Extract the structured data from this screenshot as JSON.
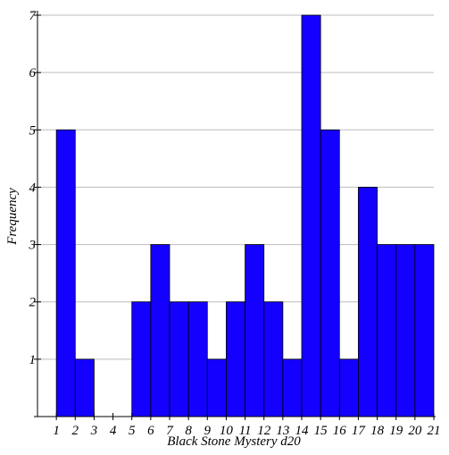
{
  "chart_data": {
    "type": "bar",
    "title": "",
    "xlabel": "Black Stone Mystery d20",
    "ylabel": "Frequency",
    "bins": [
      {
        "start": 1,
        "end": 2,
        "value": 5
      },
      {
        "start": 2,
        "end": 3,
        "value": 1
      },
      {
        "start": 3,
        "end": 4,
        "value": 0
      },
      {
        "start": 4,
        "end": 5,
        "value": 0
      },
      {
        "start": 5,
        "end": 6,
        "value": 2
      },
      {
        "start": 6,
        "end": 7,
        "value": 3
      },
      {
        "start": 7,
        "end": 8,
        "value": 2
      },
      {
        "start": 8,
        "end": 9,
        "value": 2
      },
      {
        "start": 9,
        "end": 10,
        "value": 1
      },
      {
        "start": 10,
        "end": 11,
        "value": 2
      },
      {
        "start": 11,
        "end": 12,
        "value": 3
      },
      {
        "start": 12,
        "end": 13,
        "value": 2
      },
      {
        "start": 13,
        "end": 14,
        "value": 1
      },
      {
        "start": 14,
        "end": 15,
        "value": 7
      },
      {
        "start": 15,
        "end": 16,
        "value": 5
      },
      {
        "start": 16,
        "end": 17,
        "value": 1
      },
      {
        "start": 17,
        "end": 18,
        "value": 4
      },
      {
        "start": 18,
        "end": 19,
        "value": 3
      },
      {
        "start": 19,
        "end": 20,
        "value": 3
      },
      {
        "start": 20,
        "end": 21,
        "value": 3
      }
    ],
    "x_ticks": [
      "1",
      "2",
      "3",
      "4",
      "5",
      "6",
      "7",
      "8",
      "9",
      "10",
      "11",
      "12",
      "13",
      "14",
      "15",
      "16",
      "17",
      "18",
      "19",
      "20",
      "21"
    ],
    "y_ticks": [
      "1",
      "2",
      "3",
      "4",
      "5",
      "6",
      "7"
    ],
    "xlim": [
      0,
      21
    ],
    "ylim": [
      0,
      7
    ],
    "grid": "horizontal",
    "colors": {
      "bar_fill": "#1400ff",
      "bar_stroke": "#000000",
      "grid": "#bdbdbd",
      "axis": "#000000"
    }
  }
}
